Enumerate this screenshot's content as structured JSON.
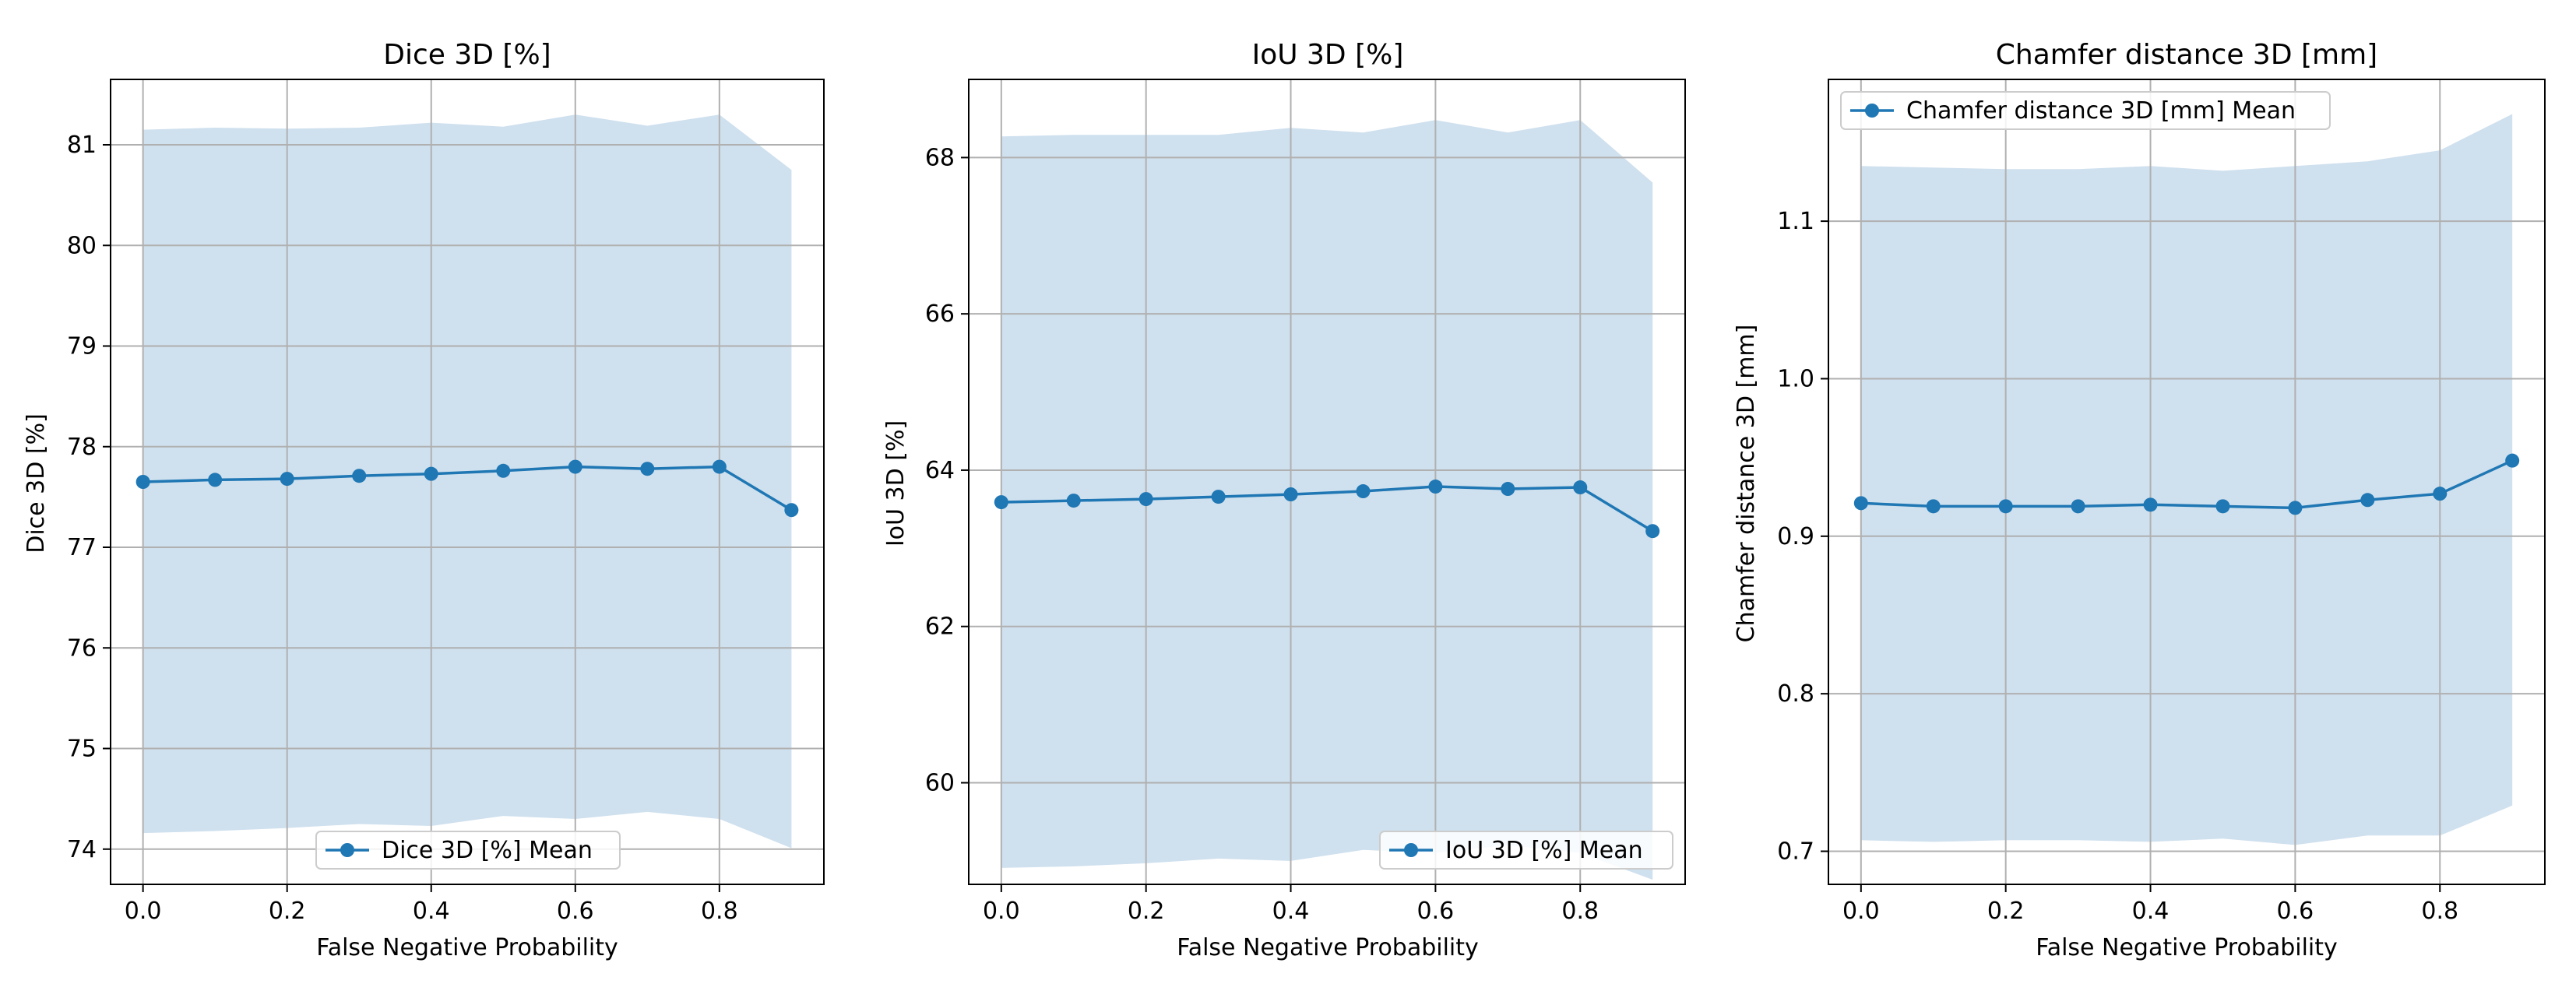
{
  "colors": {
    "line": "#1f77b4",
    "band": "#cfe0ee",
    "grid": "#b0b0b0",
    "axes": "#000000",
    "legend_border": "#cccccc"
  },
  "chart_data": [
    {
      "type": "line",
      "title": "Dice 3D [%]",
      "xlabel": "False Negative Probability",
      "ylabel": "Dice 3D [%]",
      "xlim": [
        -0.045,
        0.945
      ],
      "ylim": [
        73.65,
        81.65
      ],
      "xticks": [
        0.0,
        0.2,
        0.4,
        0.6,
        0.8
      ],
      "xtick_labels": [
        "0.0",
        "0.2",
        "0.4",
        "0.6",
        "0.8"
      ],
      "yticks": [
        74,
        75,
        76,
        77,
        78,
        79,
        80,
        81
      ],
      "ytick_labels": [
        "74",
        "75",
        "76",
        "77",
        "78",
        "79",
        "80",
        "81"
      ],
      "grid": true,
      "legend": {
        "position": "lower center",
        "label": "Dice 3D [%] Mean"
      },
      "series": [
        {
          "name": "Dice 3D [%] Mean",
          "x": [
            0.0,
            0.1,
            0.2,
            0.3,
            0.4,
            0.5,
            0.6,
            0.7,
            0.8,
            0.9
          ],
          "values": [
            77.65,
            77.67,
            77.68,
            77.71,
            77.73,
            77.76,
            77.8,
            77.78,
            77.8,
            77.37
          ],
          "band_upper": [
            81.15,
            81.17,
            81.16,
            81.17,
            81.22,
            81.18,
            81.3,
            81.19,
            81.3,
            80.75
          ],
          "band_lower": [
            74.16,
            74.18,
            74.21,
            74.25,
            74.23,
            74.33,
            74.3,
            74.37,
            74.3,
            74.01
          ]
        }
      ]
    },
    {
      "type": "line",
      "title": "IoU 3D [%]",
      "xlabel": "False Negative Probability",
      "ylabel": "IoU 3D [%]",
      "xlim": [
        -0.045,
        0.945
      ],
      "ylim": [
        58.7,
        69.0
      ],
      "xticks": [
        0.0,
        0.2,
        0.4,
        0.6,
        0.8
      ],
      "xtick_labels": [
        "0.0",
        "0.2",
        "0.4",
        "0.6",
        "0.8"
      ],
      "yticks": [
        60,
        62,
        64,
        66,
        68
      ],
      "ytick_labels": [
        "60",
        "62",
        "64",
        "66",
        "68"
      ],
      "grid": true,
      "legend": {
        "position": "lower right",
        "label": "IoU 3D [%] Mean"
      },
      "series": [
        {
          "name": "IoU 3D [%] Mean",
          "x": [
            0.0,
            0.1,
            0.2,
            0.3,
            0.4,
            0.5,
            0.6,
            0.7,
            0.8,
            0.9
          ],
          "values": [
            63.59,
            63.61,
            63.63,
            63.66,
            63.69,
            63.73,
            63.79,
            63.76,
            63.78,
            63.22
          ],
          "band_upper": [
            68.27,
            68.29,
            68.29,
            68.29,
            68.38,
            68.32,
            68.48,
            68.32,
            68.48,
            67.68
          ],
          "band_lower": [
            58.91,
            58.93,
            58.97,
            59.03,
            59.0,
            59.14,
            59.1,
            59.2,
            59.1,
            58.76
          ]
        }
      ]
    },
    {
      "type": "line",
      "title": "Chamfer distance 3D [mm]",
      "xlabel": "False Negative Probability",
      "ylabel": "Chamfer distance 3D [mm]",
      "xlim": [
        -0.045,
        0.945
      ],
      "ylim": [
        0.679,
        1.19
      ],
      "xticks": [
        0.0,
        0.2,
        0.4,
        0.6,
        0.8
      ],
      "xtick_labels": [
        "0.0",
        "0.2",
        "0.4",
        "0.6",
        "0.8"
      ],
      "yticks": [
        0.7,
        0.8,
        0.9,
        1.0,
        1.1
      ],
      "ytick_labels": [
        "0.7",
        "0.8",
        "0.9",
        "1.0",
        "1.1"
      ],
      "grid": true,
      "legend": {
        "position": "upper left",
        "label": "Chamfer distance 3D [mm] Mean"
      },
      "series": [
        {
          "name": "Chamfer distance 3D [mm] Mean",
          "x": [
            0.0,
            0.1,
            0.2,
            0.3,
            0.4,
            0.5,
            0.6,
            0.7,
            0.8,
            0.9
          ],
          "values": [
            0.921,
            0.919,
            0.919,
            0.919,
            0.92,
            0.919,
            0.918,
            0.923,
            0.927,
            0.948
          ],
          "band_upper": [
            1.135,
            1.134,
            1.133,
            1.133,
            1.135,
            1.132,
            1.135,
            1.138,
            1.145,
            1.168
          ],
          "band_lower": [
            0.707,
            0.706,
            0.707,
            0.707,
            0.706,
            0.708,
            0.704,
            0.71,
            0.71,
            0.729
          ]
        }
      ]
    }
  ]
}
